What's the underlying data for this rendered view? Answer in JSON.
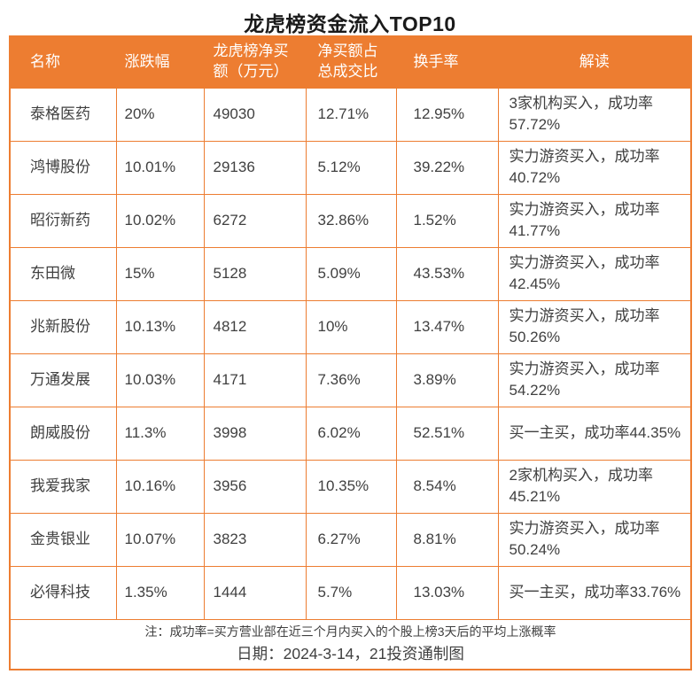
{
  "title": "龙虎榜资金流入TOP10",
  "colors": {
    "accent_orange": "#ED7D31",
    "header_text": "#FFFFFF",
    "body_text": "#404040",
    "title_text": "#1A1A1A"
  },
  "chart_data": {
    "type": "table",
    "title": "龙虎榜资金流入TOP10",
    "columns": [
      "名称",
      "涨跌幅",
      "龙虎榜净买额（万元）",
      "净买额占总成交比",
      "换手率",
      "解读"
    ],
    "rows": [
      [
        "泰格医药",
        "20%",
        "49030",
        "12.71%",
        "12.95%",
        "3家机构买入，成功率57.72%"
      ],
      [
        "鸿博股份",
        "10.01%",
        "29136",
        "5.12%",
        "39.22%",
        "实力游资买入，成功率40.72%"
      ],
      [
        "昭衍新药",
        "10.02%",
        "6272",
        "32.86%",
        "1.52%",
        "实力游资买入，成功率41.77%"
      ],
      [
        "东田微",
        "15%",
        "5128",
        "5.09%",
        "43.53%",
        "实力游资买入，成功率42.45%"
      ],
      [
        "兆新股份",
        "10.13%",
        "4812",
        "10%",
        "13.47%",
        "实力游资买入，成功率50.26%"
      ],
      [
        "万通发展",
        "10.03%",
        "4171",
        "7.36%",
        "3.89%",
        "实力游资买入，成功率54.22%"
      ],
      [
        "朗威股份",
        "11.3%",
        "3998",
        "6.02%",
        "52.51%",
        "买一主买，成功率44.35%"
      ],
      [
        "我爱我家",
        "10.16%",
        "3956",
        "10.35%",
        "8.54%",
        "2家机构买入，成功率45.21%"
      ],
      [
        "金贵银业",
        "10.07%",
        "3823",
        "6.27%",
        "8.81%",
        "实力游资买入，成功率50.24%"
      ],
      [
        "必得科技",
        "1.35%",
        "1444",
        "5.7%",
        "13.03%",
        "买一主买，成功率33.76%"
      ]
    ],
    "footnote": "注：成功率=买方营业部在近三个月内买入的个股上榜3天后的平均上涨概率",
    "date_caption": "日期：2024-3-14，21投资通制图"
  }
}
